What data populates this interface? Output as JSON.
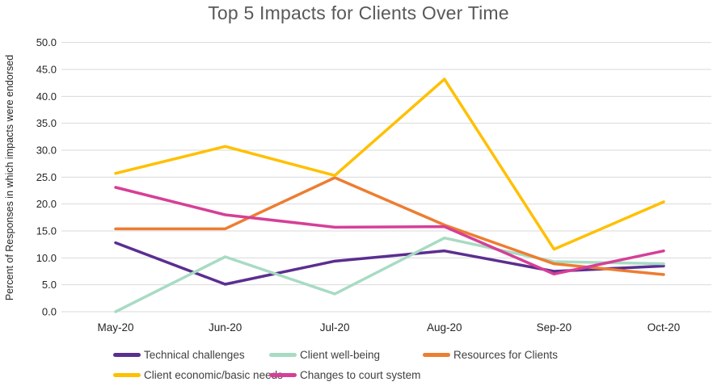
{
  "title": "Top 5 Impacts for Clients Over Time",
  "chart_data": {
    "type": "line",
    "title": "Top 5 Impacts for Clients Over Time",
    "title_color": "#595959",
    "xlabel": "",
    "ylabel": "Percent of Responses in which impacts were endorsed",
    "categories": [
      "May-20",
      "Jun-20",
      "Jul-20",
      "Aug-20",
      "Sep-20",
      "Oct-20"
    ],
    "ylim": [
      0,
      50
    ],
    "ytick_step": 5,
    "ytick_labels": [
      "0.0",
      "5.0",
      "10.0",
      "15.0",
      "20.0",
      "25.0",
      "30.0",
      "35.0",
      "40.0",
      "45.0",
      "50.0"
    ],
    "grid": true,
    "gridline_color": "#d9d9d9",
    "axis_text_color": "#262626",
    "legend_position": "bottom",
    "series": [
      {
        "name": "Technical challenges",
        "color": "#5b2e90",
        "values": [
          12.8,
          5.1,
          9.4,
          11.3,
          7.5,
          8.5
        ]
      },
      {
        "name": "Client well-being",
        "color": "#a8dbc3",
        "values": [
          0.0,
          10.2,
          3.3,
          13.7,
          9.3,
          8.9
        ]
      },
      {
        "name": "Resources for Clients",
        "color": "#ed7d31",
        "values": [
          15.4,
          15.4,
          24.9,
          16.1,
          8.9,
          6.9
        ]
      },
      {
        "name": "Client economic/basic needs",
        "color": "#ffc000",
        "values": [
          25.7,
          30.7,
          25.3,
          43.2,
          11.6,
          20.4
        ]
      },
      {
        "name": "Changes to court system",
        "color": "#d63f97",
        "values": [
          23.1,
          18.0,
          15.7,
          15.8,
          7.0,
          11.3
        ]
      }
    ]
  }
}
